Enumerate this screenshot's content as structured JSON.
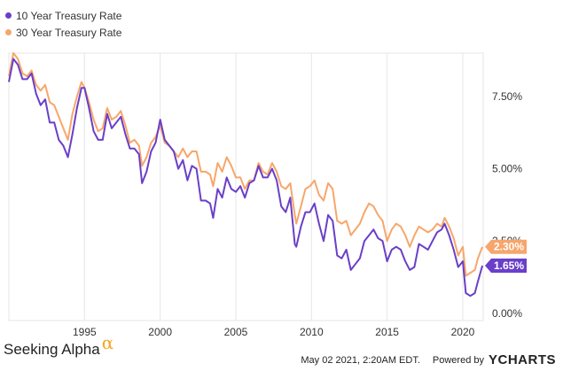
{
  "legend": [
    {
      "name": "10 Year Treasury Rate",
      "color": "#6a3fc8"
    },
    {
      "name": "30 Year Treasury Rate",
      "color": "#f7a66b"
    }
  ],
  "brand": {
    "text": "Seeking Alpha",
    "symbol": "α",
    "symbol_color": "#f5a623"
  },
  "footer": {
    "timestamp": "May 02 2021, 2:20AM EDT.",
    "powered": "Powered by",
    "logo": "YCHARTS"
  },
  "chart_data": {
    "type": "line",
    "xlabel": "",
    "ylabel": "",
    "xlim": [
      1990.0,
      2021.35
    ],
    "ylim": [
      -0.25,
      9.0
    ],
    "xticks": [
      1995,
      2000,
      2005,
      2010,
      2015,
      2020
    ],
    "yticks": [
      0,
      2.5,
      5,
      7.5
    ],
    "ytick_labels": [
      "0.00%",
      "2.50%",
      "5.00%",
      "7.50%"
    ],
    "grid": "vertical",
    "legend_position": "top-left",
    "end_labels": [
      {
        "series": "30 Year Treasury Rate",
        "text": "2.30%",
        "value": 2.3,
        "color": "#f7a66b"
      },
      {
        "series": "10 Year Treasury Rate",
        "text": "1.65%",
        "value": 1.65,
        "color": "#6a3fc8"
      }
    ],
    "series": [
      {
        "name": "10 Year Treasury Rate",
        "color": "#6a3fc8",
        "x": [
          1990.0,
          1990.3,
          1990.6,
          1990.9,
          1991.2,
          1991.5,
          1991.8,
          1992.1,
          1992.4,
          1992.7,
          1993.0,
          1993.3,
          1993.6,
          1993.9,
          1994.2,
          1994.5,
          1994.8,
          1995.0,
          1995.3,
          1995.6,
          1995.9,
          1996.2,
          1996.5,
          1996.8,
          1997.1,
          1997.4,
          1997.7,
          1998.0,
          1998.3,
          1998.6,
          1998.8,
          1999.1,
          1999.4,
          1999.7,
          2000.0,
          2000.3,
          2000.6,
          2000.9,
          2001.2,
          2001.5,
          2001.8,
          2002.1,
          2002.4,
          2002.7,
          2003.0,
          2003.3,
          2003.5,
          2003.8,
          2004.1,
          2004.4,
          2004.7,
          2005.0,
          2005.3,
          2005.6,
          2005.9,
          2006.2,
          2006.5,
          2006.8,
          2007.1,
          2007.4,
          2007.7,
          2008.0,
          2008.3,
          2008.6,
          2008.9,
          2009.0,
          2009.3,
          2009.6,
          2009.9,
          2010.2,
          2010.5,
          2010.8,
          2011.1,
          2011.4,
          2011.7,
          2012.0,
          2012.3,
          2012.6,
          2012.9,
          2013.2,
          2013.5,
          2013.8,
          2014.1,
          2014.4,
          2014.7,
          2015.0,
          2015.3,
          2015.6,
          2015.9,
          2016.2,
          2016.5,
          2016.8,
          2017.1,
          2017.4,
          2017.7,
          2018.0,
          2018.3,
          2018.6,
          2018.8,
          2019.1,
          2019.4,
          2019.7,
          2020.0,
          2020.2,
          2020.5,
          2020.8,
          2021.0,
          2021.3
        ],
        "values": [
          8.0,
          8.8,
          8.6,
          8.1,
          8.1,
          8.3,
          7.6,
          7.2,
          7.4,
          6.6,
          6.6,
          6.0,
          5.8,
          5.4,
          6.2,
          7.1,
          7.8,
          7.8,
          7.1,
          6.3,
          6.0,
          6.0,
          6.9,
          6.4,
          6.6,
          6.8,
          6.2,
          5.7,
          5.7,
          5.5,
          4.5,
          4.9,
          5.6,
          5.9,
          6.7,
          6.0,
          5.8,
          5.6,
          5.0,
          5.3,
          4.6,
          5.1,
          5.0,
          3.9,
          3.9,
          3.8,
          3.3,
          4.3,
          4.0,
          4.7,
          4.3,
          4.2,
          4.4,
          4.0,
          4.5,
          4.6,
          5.1,
          4.7,
          4.7,
          5.0,
          4.6,
          3.7,
          3.5,
          4.0,
          2.4,
          2.3,
          3.0,
          3.5,
          3.5,
          3.8,
          3.1,
          2.5,
          3.4,
          3.2,
          2.0,
          1.9,
          2.2,
          1.5,
          1.7,
          1.9,
          2.5,
          2.7,
          2.9,
          2.6,
          2.5,
          1.8,
          2.2,
          2.3,
          2.2,
          1.8,
          1.5,
          1.6,
          2.4,
          2.3,
          2.2,
          2.5,
          2.8,
          2.9,
          3.1,
          2.7,
          2.2,
          1.6,
          1.8,
          0.7,
          0.6,
          0.7,
          1.1,
          1.65
        ]
      },
      {
        "name": "30 Year Treasury Rate",
        "color": "#f7a66b",
        "x": [
          1990.0,
          1990.3,
          1990.6,
          1990.9,
          1991.2,
          1991.5,
          1991.8,
          1992.1,
          1992.4,
          1992.7,
          1993.0,
          1993.3,
          1993.6,
          1993.9,
          1994.2,
          1994.5,
          1994.8,
          1995.0,
          1995.3,
          1995.6,
          1995.9,
          1996.2,
          1996.5,
          1996.8,
          1997.1,
          1997.4,
          1997.7,
          1998.0,
          1998.3,
          1998.6,
          1998.8,
          1999.1,
          1999.4,
          1999.7,
          2000.0,
          2000.3,
          2000.6,
          2000.9,
          2001.2,
          2001.5,
          2001.8,
          2002.1,
          2002.4,
          2002.7,
          2003.0,
          2003.3,
          2003.5,
          2003.8,
          2004.1,
          2004.4,
          2004.7,
          2005.0,
          2005.3,
          2005.6,
          2005.9,
          2006.2,
          2006.5,
          2006.8,
          2007.1,
          2007.4,
          2007.7,
          2008.0,
          2008.3,
          2008.6,
          2008.9,
          2009.0,
          2009.3,
          2009.6,
          2009.9,
          2010.2,
          2010.5,
          2010.8,
          2011.1,
          2011.4,
          2011.7,
          2012.0,
          2012.3,
          2012.6,
          2012.9,
          2013.2,
          2013.5,
          2013.8,
          2014.1,
          2014.4,
          2014.7,
          2015.0,
          2015.3,
          2015.6,
          2015.9,
          2016.2,
          2016.5,
          2016.8,
          2017.1,
          2017.4,
          2017.7,
          2018.0,
          2018.3,
          2018.6,
          2018.8,
          2019.1,
          2019.4,
          2019.7,
          2020.0,
          2020.2,
          2020.5,
          2020.8,
          2021.0,
          2021.3
        ],
        "values": [
          8.2,
          9.0,
          8.8,
          8.3,
          8.2,
          8.4,
          7.9,
          7.7,
          7.9,
          7.3,
          7.2,
          6.8,
          6.4,
          6.0,
          6.9,
          7.5,
          8.0,
          7.8,
          7.3,
          6.7,
          6.3,
          6.4,
          7.1,
          6.7,
          6.8,
          7.0,
          6.5,
          5.9,
          6.0,
          5.8,
          5.1,
          5.4,
          5.9,
          6.1,
          6.5,
          5.9,
          5.8,
          5.6,
          5.4,
          5.7,
          5.4,
          5.6,
          5.6,
          4.9,
          4.9,
          4.8,
          4.4,
          5.2,
          4.9,
          5.4,
          5.1,
          4.7,
          4.7,
          4.3,
          4.6,
          4.6,
          5.2,
          4.9,
          4.8,
          5.2,
          4.9,
          4.4,
          4.3,
          4.5,
          3.4,
          3.1,
          3.7,
          4.3,
          4.4,
          4.6,
          4.1,
          3.9,
          4.5,
          4.3,
          3.2,
          3.1,
          3.2,
          2.7,
          2.9,
          3.1,
          3.5,
          3.8,
          3.7,
          3.4,
          3.2,
          2.5,
          2.9,
          3.1,
          3.0,
          2.7,
          2.3,
          2.7,
          3.0,
          2.9,
          2.8,
          2.9,
          3.1,
          3.0,
          3.3,
          3.0,
          2.6,
          2.0,
          2.3,
          1.3,
          1.4,
          1.5,
          1.9,
          2.3
        ]
      }
    ]
  }
}
